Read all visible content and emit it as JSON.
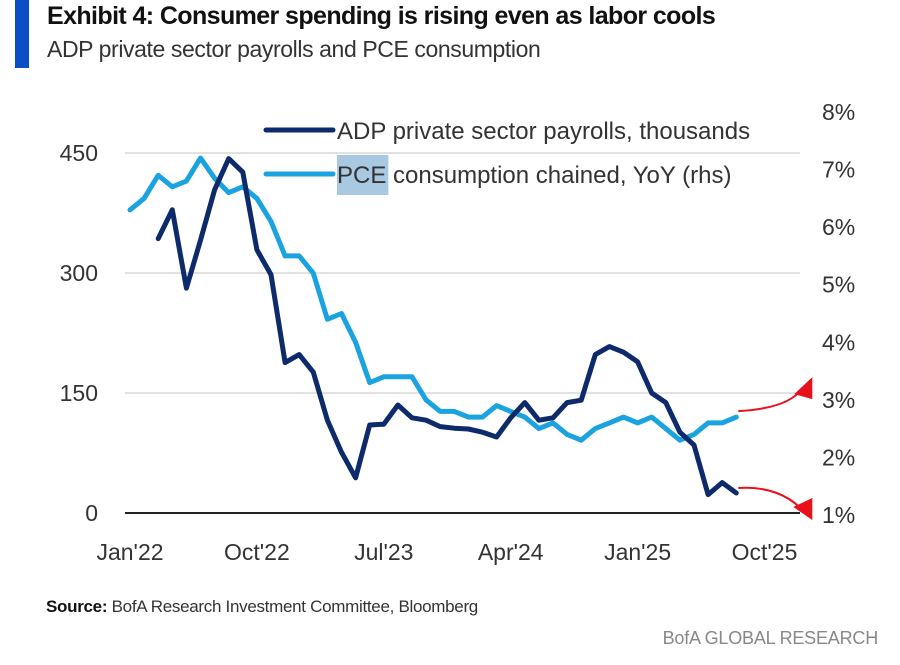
{
  "header": {
    "title": "Exhibit 4: Consumer spending is rising even as labor cools",
    "subtitle": "ADP private sector payrolls and PCE consumption"
  },
  "footer": {
    "source_label": "Source:",
    "source_text": " BofA Research Investment Committee, Bloomberg",
    "brand": "BofA GLOBAL RESEARCH"
  },
  "colors": {
    "accent": "#0b4fc7",
    "adp": "#0d2a6b",
    "pce": "#1ba3e0",
    "annotation": "#e8101a",
    "grid": "#d9d9d9",
    "highlight": "#a9c9e2"
  },
  "chart_data": {
    "type": "line",
    "title": "Exhibit 4: Consumer spending is rising even as labor cools",
    "subtitle": "ADP private sector payrolls and PCE consumption",
    "xlabel": "",
    "ylabel_left": "",
    "ylabel_right": "",
    "x_start": "Jan'22",
    "x_unit": "month",
    "x_ticks": [
      {
        "label": "Jan'22",
        "month_index": 0
      },
      {
        "label": "Oct'22",
        "month_index": 9
      },
      {
        "label": "Jul'23",
        "month_index": 18
      },
      {
        "label": "Apr'24",
        "month_index": 27
      },
      {
        "label": "Jan'25",
        "month_index": 36
      },
      {
        "label": "Oct'25",
        "month_index": 45
      }
    ],
    "xlim": [
      0,
      47
    ],
    "y_left": {
      "ticks": [
        0,
        150,
        300,
        450
      ],
      "tick_labels": [
        "0",
        "150",
        "300",
        "450"
      ],
      "ylim": [
        0,
        450
      ]
    },
    "y_right": {
      "ticks": [
        1,
        2,
        3,
        4,
        5,
        6,
        7,
        8
      ],
      "tick_labels": [
        "1%",
        "2%",
        "3%",
        "4%",
        "5%",
        "6%",
        "7%",
        "8%"
      ],
      "ylim": [
        1,
        8
      ]
    },
    "grid": true,
    "legend_position": "top-center",
    "series": [
      {
        "name": "ADP private sector payrolls, thousands",
        "axis": "left",
        "start_month_index": 2,
        "values": [
          343,
          379,
          281,
          341,
          404,
          443,
          426,
          329,
          298,
          188,
          198,
          176,
          116,
          76,
          44,
          110,
          111,
          135,
          119,
          116,
          108,
          106,
          105,
          101,
          95,
          119,
          138,
          116,
          119,
          138,
          141,
          198,
          208,
          201,
          189,
          150,
          138,
          101,
          85,
          23,
          38,
          25
        ]
      },
      {
        "name": "PCE consumption chained, YoY (rhs)",
        "axis": "right",
        "highlighted_word": "PCE",
        "start_month_index": 0,
        "values": [
          6.3,
          6.5,
          6.9,
          6.7,
          6.8,
          7.2,
          6.85,
          6.6,
          6.7,
          6.5,
          6.1,
          5.5,
          5.5,
          5.2,
          4.4,
          4.5,
          4.0,
          3.3,
          3.4,
          3.4,
          3.4,
          3.0,
          2.8,
          2.8,
          2.7,
          2.7,
          2.9,
          2.8,
          2.7,
          2.5,
          2.6,
          2.4,
          2.3,
          2.5,
          2.6,
          2.7,
          2.6,
          2.7,
          2.5,
          2.3,
          2.4,
          2.6,
          2.6,
          2.7
        ]
      }
    ],
    "annotations": [
      {
        "type": "arrow",
        "series": "PCE consumption chained, YoY (rhs)",
        "direction": "up"
      },
      {
        "type": "arrow",
        "series": "ADP private sector payrolls, thousands",
        "direction": "down"
      }
    ]
  }
}
